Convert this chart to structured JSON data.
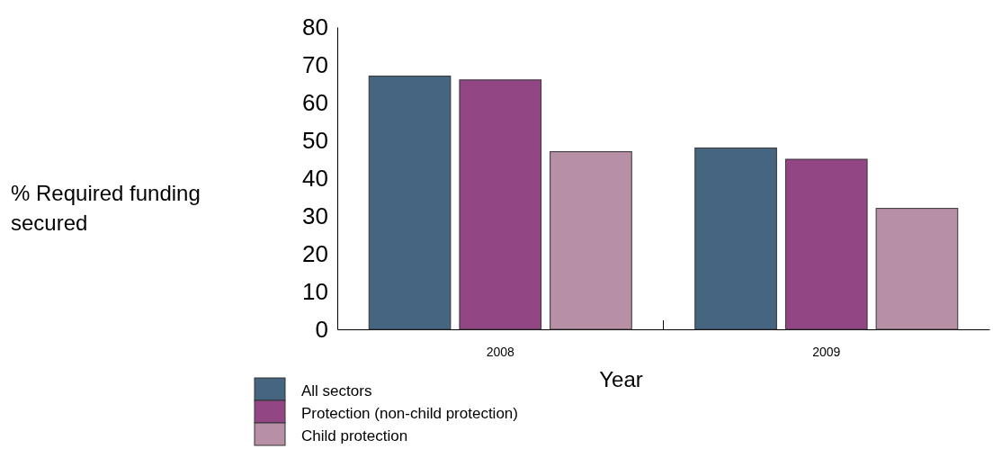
{
  "chart_data": {
    "type": "bar",
    "xlabel": "Year",
    "ylabel": "% Required funding secured",
    "categories": [
      "2008",
      "2009"
    ],
    "series": [
      {
        "name": "All sectors",
        "color": "#466580",
        "values": [
          67,
          48
        ]
      },
      {
        "name": "Protection (non-child protection)",
        "color": "#924683",
        "values": [
          66,
          45
        ]
      },
      {
        "name": "Child protection",
        "color": "#b890a6",
        "values": [
          47,
          32
        ]
      }
    ],
    "ylim": [
      0,
      80
    ],
    "yticks": [
      0,
      10,
      20,
      30,
      40,
      50,
      60,
      70,
      80
    ],
    "grid": false,
    "legend": "bottom"
  }
}
